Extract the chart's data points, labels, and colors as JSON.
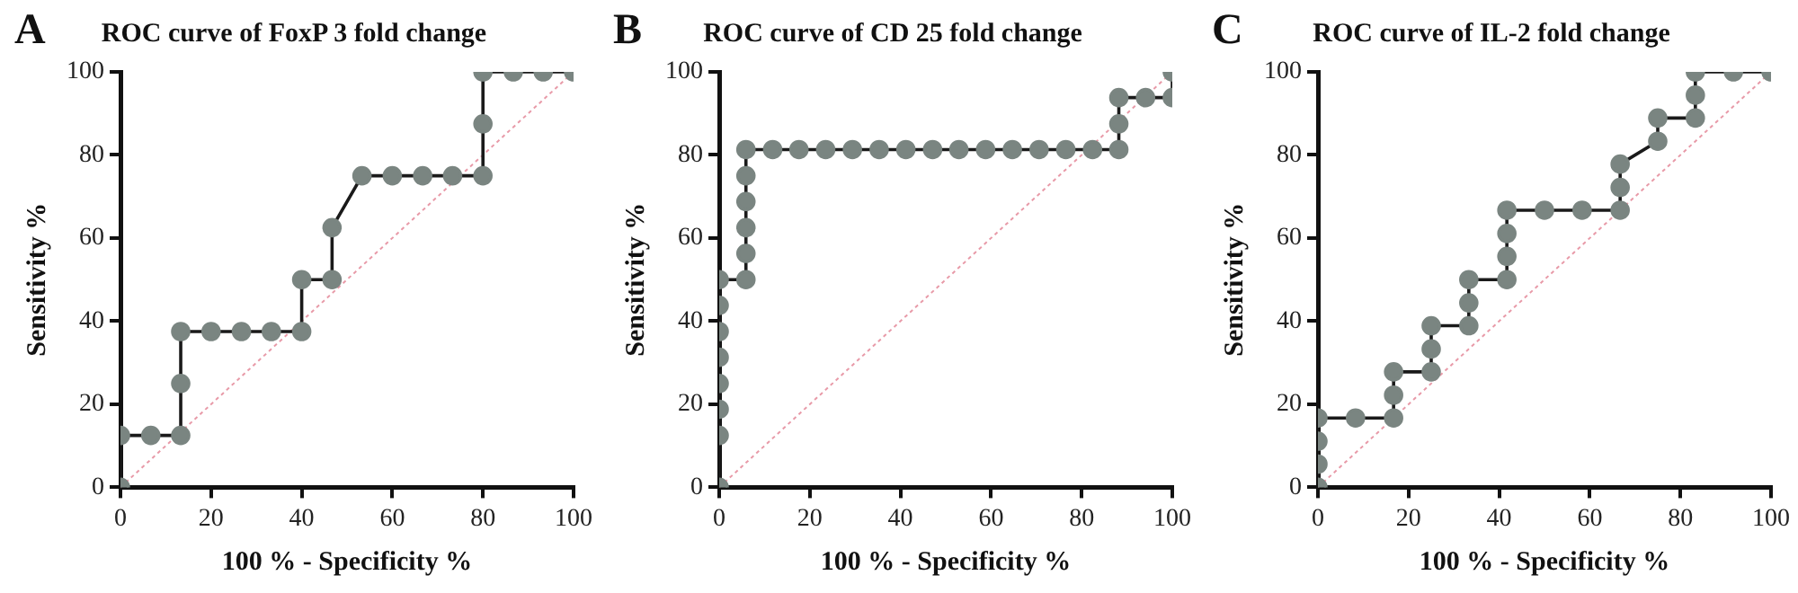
{
  "chart_data": [
    {
      "type": "line",
      "title": "ROC curve of FoxP 3 fold change",
      "xlabel": "100 % - Specificity %",
      "ylabel": "Sensitivity %",
      "annotations": [
        "A"
      ],
      "xlim": [
        0,
        100
      ],
      "ylim": [
        0,
        100
      ],
      "xticks": [
        0,
        20,
        40,
        60,
        80,
        100
      ],
      "yticks": [
        0,
        20,
        40,
        60,
        80,
        100
      ],
      "grid": false,
      "series": [
        {
          "color": "#1a1a1a",
          "x": [
            0,
            0,
            13.3,
            13.3,
            40,
            40,
            46.7,
            46.7,
            53.3,
            80,
            80,
            100
          ],
          "values": [
            0,
            12.5,
            12.5,
            37.5,
            37.5,
            50,
            50,
            62.5,
            75,
            75,
            100,
            100
          ],
          "line_style": "solid"
        },
        {
          "type": "scatter",
          "marker": "circle",
          "color": "#7a8581",
          "x": [
            0,
            0,
            6.7,
            13.3,
            13.3,
            13.3,
            20,
            26.7,
            33.3,
            40,
            40,
            46.7,
            46.7,
            53.3,
            60,
            66.7,
            73.3,
            80,
            80,
            80,
            86.7,
            93.3,
            100
          ],
          "values": [
            0,
            12.5,
            12.5,
            12.5,
            25,
            37.5,
            37.5,
            37.5,
            37.5,
            37.5,
            50,
            50,
            62.5,
            75,
            75,
            75,
            75,
            75,
            87.5,
            100,
            100,
            100,
            100
          ]
        },
        {
          "color": "#e89aa8",
          "x": [
            0,
            100
          ],
          "values": [
            0,
            100
          ],
          "line_style": "dotted"
        }
      ]
    },
    {
      "type": "line",
      "title": "ROC curve of CD 25 fold change",
      "xlabel": "100 % - Specificity %",
      "ylabel": "Sensitivity %",
      "annotations": [
        "B"
      ],
      "xlim": [
        0,
        100
      ],
      "ylim": [
        0,
        100
      ],
      "xticks": [
        0,
        20,
        40,
        60,
        80,
        100
      ],
      "yticks": [
        0,
        20,
        40,
        60,
        80,
        100
      ],
      "grid": false,
      "series": [
        {
          "color": "#1a1a1a",
          "x": [
            0,
            0,
            5.9,
            5.9,
            88.2,
            88.2,
            100,
            100
          ],
          "values": [
            0,
            50,
            50,
            81.3,
            81.3,
            93.8,
            93.8,
            100
          ],
          "line_style": "solid"
        },
        {
          "type": "scatter",
          "marker": "circle",
          "color": "#7a8581",
          "x": [
            0,
            0,
            0,
            0,
            0,
            0,
            0,
            0,
            5.9,
            5.9,
            5.9,
            5.9,
            5.9,
            5.9,
            11.8,
            17.6,
            23.5,
            29.4,
            35.3,
            41.2,
            47.1,
            52.9,
            58.8,
            64.7,
            70.6,
            76.5,
            82.4,
            88.2,
            88.2,
            88.2,
            94.1,
            100,
            100
          ],
          "values": [
            0,
            12.5,
            18.8,
            25,
            31.3,
            37.5,
            43.8,
            50,
            50,
            56.3,
            62.5,
            68.8,
            75,
            81.3,
            81.3,
            81.3,
            81.3,
            81.3,
            81.3,
            81.3,
            81.3,
            81.3,
            81.3,
            81.3,
            81.3,
            81.3,
            81.3,
            81.3,
            87.5,
            93.8,
            93.8,
            93.8,
            100
          ]
        },
        {
          "color": "#e89aa8",
          "x": [
            0,
            100
          ],
          "values": [
            0,
            100
          ],
          "line_style": "dotted"
        }
      ]
    },
    {
      "type": "line",
      "title": "ROC curve of IL-2 fold change",
      "xlabel": "100 % - Specificity %",
      "ylabel": "Sensitivity %",
      "annotations": [
        "C"
      ],
      "xlim": [
        0,
        100
      ],
      "ylim": [
        0,
        100
      ],
      "xticks": [
        0,
        20,
        40,
        60,
        80,
        100
      ],
      "yticks": [
        0,
        20,
        40,
        60,
        80,
        100
      ],
      "grid": false,
      "series": [
        {
          "color": "#1a1a1a",
          "x": [
            0,
            0,
            16.7,
            16.7,
            25,
            25,
            33.3,
            33.3,
            41.7,
            41.7,
            66.7,
            66.7,
            75,
            75,
            83.3,
            83.3,
            100
          ],
          "values": [
            0,
            16.7,
            16.7,
            27.8,
            27.8,
            38.9,
            38.9,
            50,
            50,
            66.7,
            66.7,
            77.8,
            83.3,
            88.9,
            88.9,
            100,
            100
          ],
          "line_style": "solid"
        },
        {
          "type": "scatter",
          "marker": "circle",
          "color": "#7a8581",
          "x": [
            0,
            0,
            0,
            0,
            8.3,
            16.7,
            16.7,
            16.7,
            25,
            25,
            25,
            33.3,
            33.3,
            33.3,
            41.7,
            41.7,
            41.7,
            41.7,
            50,
            58.3,
            66.7,
            66.7,
            66.7,
            75,
            75,
            83.3,
            83.3,
            83.3,
            91.7,
            100
          ],
          "values": [
            0,
            5.6,
            11.1,
            16.7,
            16.7,
            16.7,
            22.2,
            27.8,
            27.8,
            33.3,
            38.9,
            38.9,
            44.4,
            50,
            50,
            55.6,
            61.1,
            66.7,
            66.7,
            66.7,
            66.7,
            72.2,
            77.8,
            83.3,
            88.9,
            88.9,
            94.4,
            100,
            100,
            100
          ]
        },
        {
          "color": "#e89aa8",
          "x": [
            0,
            100
          ],
          "values": [
            0,
            100
          ],
          "line_style": "dotted"
        }
      ]
    }
  ]
}
